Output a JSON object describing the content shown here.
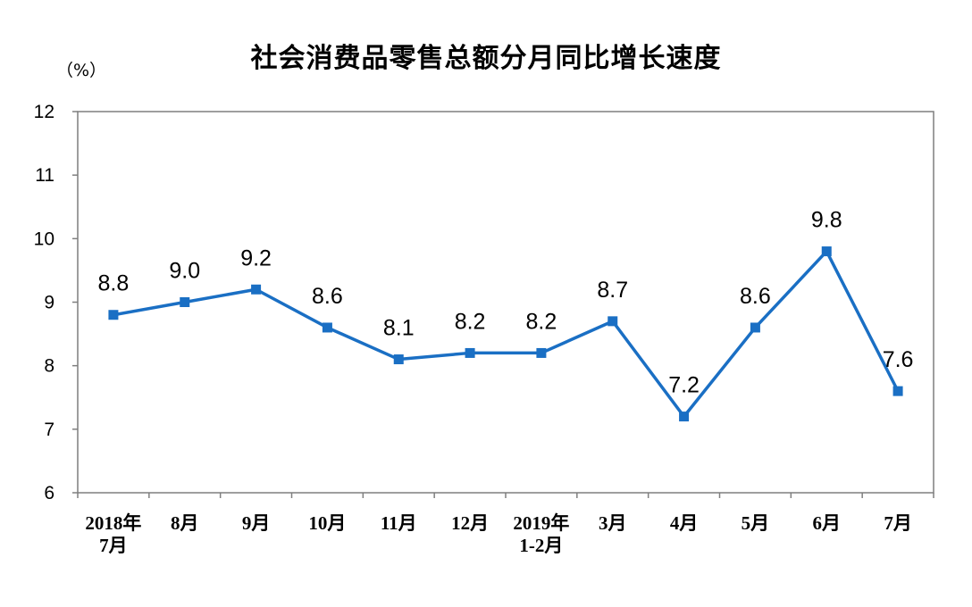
{
  "chart_data": {
    "type": "line",
    "title": "社会消费品零售总额分月同比增长速度",
    "ylabel": "（%）",
    "xlabel": "",
    "ylim": [
      6,
      12
    ],
    "yticks": [
      "6",
      "7",
      "8",
      "9",
      "10",
      "11",
      "12"
    ],
    "grid": false,
    "categories": [
      [
        "2018年",
        "7月"
      ],
      [
        "8月"
      ],
      [
        "9月"
      ],
      [
        "10月"
      ],
      [
        "11月"
      ],
      [
        "12月"
      ],
      [
        "2019年",
        "1-2月"
      ],
      [
        "3月"
      ],
      [
        "4月"
      ],
      [
        "5月"
      ],
      [
        "6月"
      ],
      [
        "7月"
      ]
    ],
    "series": [
      {
        "values": [
          8.8,
          9.0,
          9.2,
          8.6,
          8.1,
          8.2,
          8.2,
          8.7,
          7.2,
          8.6,
          9.8,
          7.6
        ],
        "labels": [
          "8.8",
          "9.0",
          "9.2",
          "8.6",
          "8.1",
          "8.2",
          "8.2",
          "8.7",
          "7.2",
          "8.6",
          "9.8",
          "7.6"
        ],
        "color": "#1a6fc4",
        "marker": "square"
      }
    ]
  }
}
